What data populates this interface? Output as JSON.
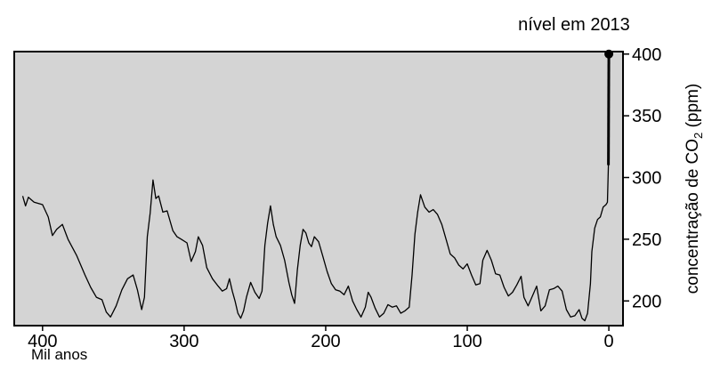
{
  "chart_data": {
    "type": "line",
    "title": "",
    "xlabel": "Mil anos",
    "ylabel_parts": [
      "concentração de CO",
      "2",
      " (ppm)"
    ],
    "xlim": [
      420,
      -10
    ],
    "ylim": [
      180,
      402
    ],
    "x_ticks": [
      400,
      300,
      200,
      100,
      0
    ],
    "y_ticks": [
      200,
      250,
      300,
      350,
      400
    ],
    "x_tick_labels": [
      "400",
      "300",
      "200",
      "100",
      "0"
    ],
    "y_tick_labels": [
      "200",
      "250",
      "300",
      "350",
      "400"
    ],
    "annotation": "nível em 2013",
    "annotation_point": {
      "x": 0,
      "y": 400
    },
    "grid": false,
    "series": [
      {
        "points": [
          [
            414,
            285
          ],
          [
            412,
            277
          ],
          [
            410,
            284
          ],
          [
            406,
            280
          ],
          [
            400,
            278
          ],
          [
            396,
            268
          ],
          [
            393,
            253
          ],
          [
            390,
            258
          ],
          [
            386,
            262
          ],
          [
            382,
            250
          ],
          [
            376,
            237
          ],
          [
            370,
            221
          ],
          [
            366,
            211
          ],
          [
            362,
            203
          ],
          [
            358,
            201
          ],
          [
            355,
            191
          ],
          [
            352,
            187
          ],
          [
            348,
            196
          ],
          [
            344,
            209
          ],
          [
            340,
            218
          ],
          [
            336,
            221
          ],
          [
            333,
            209
          ],
          [
            330,
            193
          ],
          [
            328,
            203
          ],
          [
            326,
            252
          ],
          [
            324,
            271
          ],
          [
            322,
            298
          ],
          [
            320,
            283
          ],
          [
            318,
            285
          ],
          [
            315,
            272
          ],
          [
            312,
            273
          ],
          [
            308,
            257
          ],
          [
            305,
            252
          ],
          [
            302,
            250
          ],
          [
            298,
            247
          ],
          [
            295,
            232
          ],
          [
            292,
            240
          ],
          [
            290,
            252
          ],
          [
            287,
            245
          ],
          [
            284,
            227
          ],
          [
            280,
            218
          ],
          [
            276,
            212
          ],
          [
            273,
            208
          ],
          [
            270,
            210
          ],
          [
            268,
            218
          ],
          [
            266,
            208
          ],
          [
            264,
            200
          ],
          [
            262,
            190
          ],
          [
            260,
            186
          ],
          [
            258,
            192
          ],
          [
            256,
            203
          ],
          [
            253,
            215
          ],
          [
            250,
            207
          ],
          [
            247,
            202
          ],
          [
            245,
            208
          ],
          [
            243,
            245
          ],
          [
            241,
            263
          ],
          [
            239,
            277
          ],
          [
            237,
            262
          ],
          [
            235,
            252
          ],
          [
            232,
            245
          ],
          [
            229,
            233
          ],
          [
            226,
            215
          ],
          [
            224,
            205
          ],
          [
            222,
            198
          ],
          [
            220,
            225
          ],
          [
            218,
            245
          ],
          [
            216,
            258
          ],
          [
            214,
            255
          ],
          [
            212,
            247
          ],
          [
            210,
            244
          ],
          [
            208,
            252
          ],
          [
            205,
            248
          ],
          [
            202,
            236
          ],
          [
            199,
            224
          ],
          [
            196,
            214
          ],
          [
            193,
            209
          ],
          [
            190,
            208
          ],
          [
            187,
            205
          ],
          [
            184,
            212
          ],
          [
            181,
            200
          ],
          [
            178,
            193
          ],
          [
            175,
            187
          ],
          [
            172,
            195
          ],
          [
            170,
            207
          ],
          [
            168,
            203
          ],
          [
            165,
            194
          ],
          [
            162,
            187
          ],
          [
            159,
            190
          ],
          [
            156,
            197
          ],
          [
            153,
            195
          ],
          [
            150,
            196
          ],
          [
            147,
            190
          ],
          [
            144,
            192
          ],
          [
            141,
            195
          ],
          [
            139,
            221
          ],
          [
            137,
            254
          ],
          [
            135,
            272
          ],
          [
            133,
            286
          ],
          [
            130,
            276
          ],
          [
            127,
            272
          ],
          [
            124,
            274
          ],
          [
            121,
            270
          ],
          [
            118,
            262
          ],
          [
            115,
            250
          ],
          [
            112,
            238
          ],
          [
            109,
            235
          ],
          [
            106,
            229
          ],
          [
            103,
            226
          ],
          [
            100,
            230
          ],
          [
            97,
            221
          ],
          [
            94,
            213
          ],
          [
            91,
            214
          ],
          [
            89,
            233
          ],
          [
            86,
            241
          ],
          [
            83,
            233
          ],
          [
            80,
            222
          ],
          [
            77,
            221
          ],
          [
            74,
            211
          ],
          [
            71,
            204
          ],
          [
            68,
            207
          ],
          [
            65,
            213
          ],
          [
            62,
            220
          ],
          [
            60,
            203
          ],
          [
            57,
            196
          ],
          [
            54,
            204
          ],
          [
            51,
            212
          ],
          [
            48,
            192
          ],
          [
            45,
            196
          ],
          [
            42,
            209
          ],
          [
            39,
            210
          ],
          [
            36,
            212
          ],
          [
            33,
            208
          ],
          [
            30,
            193
          ],
          [
            27,
            187
          ],
          [
            24,
            188
          ],
          [
            21,
            193
          ],
          [
            19,
            186
          ],
          [
            17,
            184
          ],
          [
            15,
            190
          ],
          [
            13,
            214
          ],
          [
            12,
            240
          ],
          [
            10,
            259
          ],
          [
            8,
            266
          ],
          [
            6,
            268
          ],
          [
            4,
            276
          ],
          [
            2,
            278
          ],
          [
            1,
            280
          ],
          [
            0.3,
            310
          ],
          [
            0,
            400
          ]
        ]
      }
    ]
  }
}
